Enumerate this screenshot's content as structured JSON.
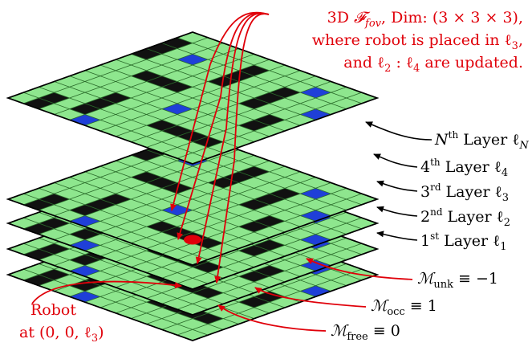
{
  "colors": {
    "free": "#8ee68e",
    "occupied": "#111111",
    "unknown": "#1f3fd8",
    "fov": "#f2ea00",
    "grid_line": "#2a6b2a",
    "annotation": "#e0000a",
    "robot": "#e0000a"
  },
  "title": {
    "line1_pre": "3D ",
    "line1_fov": "𝓕",
    "line1_fov_sub": "fov",
    "line1_post": ", Dim: (3 × 3 × 3),",
    "line2": "where robot is placed in ℓ",
    "line2_sub": "3",
    "line2_end": ",",
    "line3_pre": "and ℓ",
    "line3_sub1": "2",
    "line3_mid": " : ℓ",
    "line3_sub2": "4",
    "line3_post": " are updated."
  },
  "layers": [
    {
      "ord": "N",
      "sup": "th",
      "text": " Layer ℓ",
      "sub": "N"
    },
    {
      "ord": "4",
      "sup": "th",
      "text": " Layer ℓ",
      "sub": "4"
    },
    {
      "ord": "3",
      "sup": "rd",
      "text": " Layer ℓ",
      "sub": "3"
    },
    {
      "ord": "2",
      "sup": "nd",
      "text": " Layer ℓ",
      "sub": "2"
    },
    {
      "ord": "1",
      "sup": "st",
      "text": " Layer ℓ",
      "sub": "1"
    }
  ],
  "legend": [
    {
      "sym": "ℳ",
      "sub": "unk",
      "eq": " ≡ −1"
    },
    {
      "sym": "ℳ",
      "sub": "occ",
      "eq": " ≡ 1"
    },
    {
      "sym": "ℳ",
      "sub": "free",
      "eq": " ≡ 0"
    }
  ],
  "robot_label": {
    "line1": "Robot",
    "line2": "at (0, 0, ℓ",
    "line2_sub": "3",
    "line2_end": ")"
  }
}
